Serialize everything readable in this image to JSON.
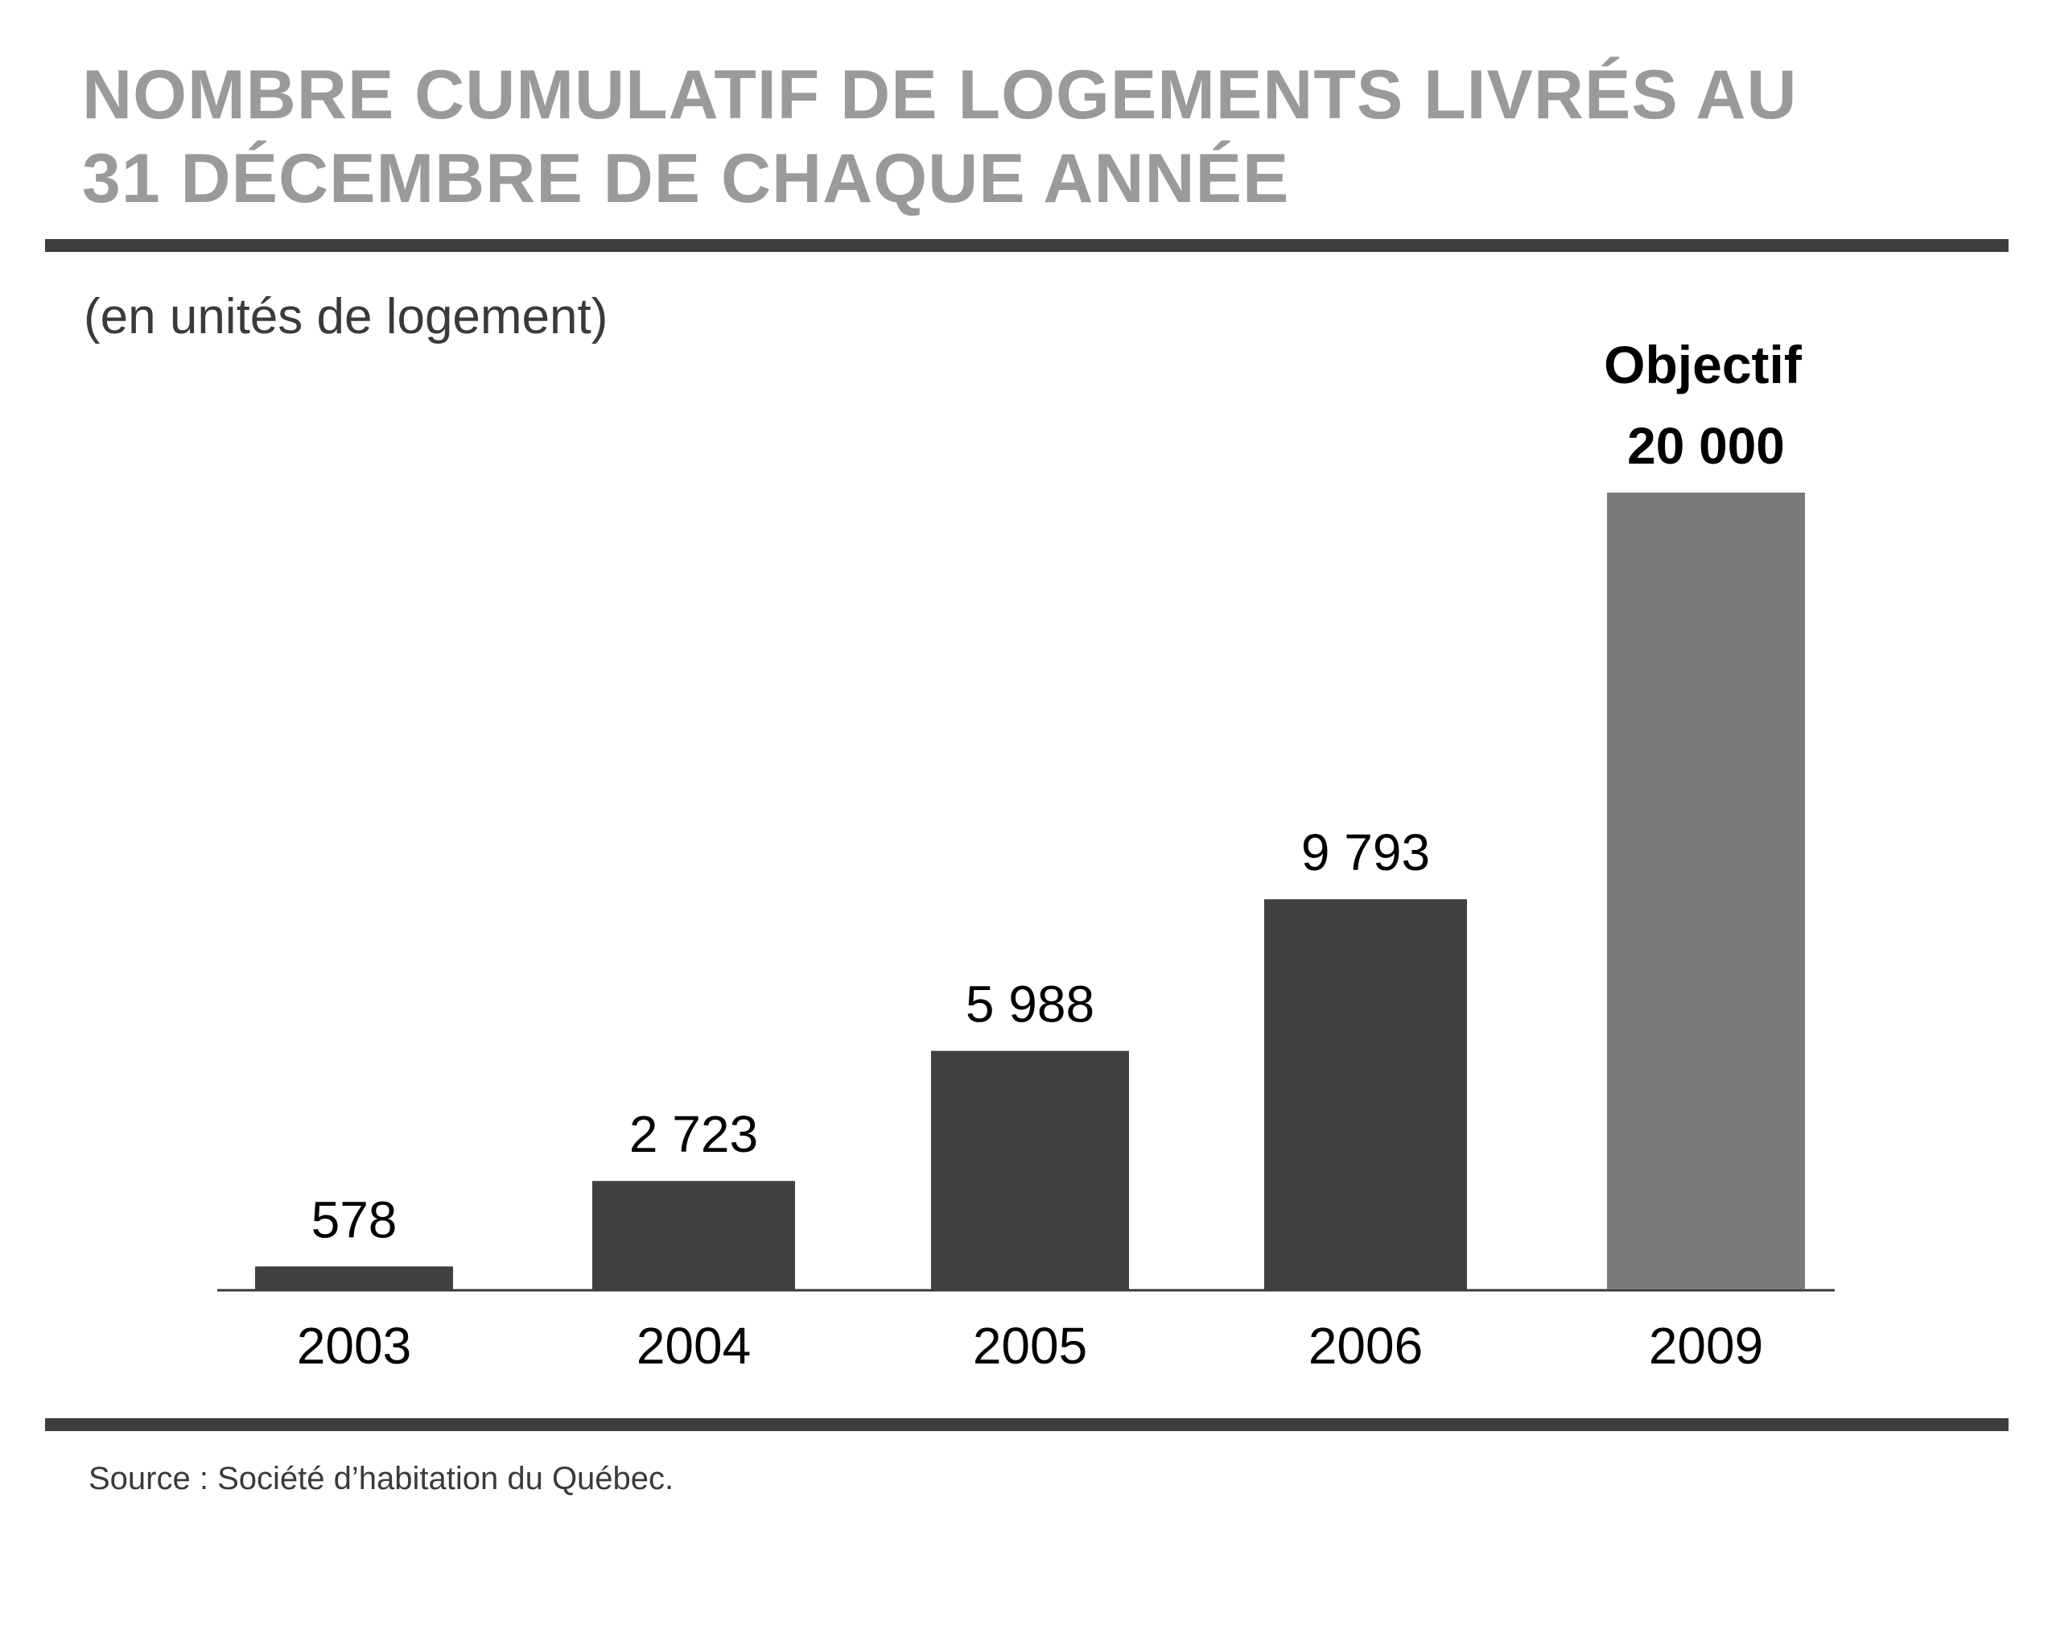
{
  "title_lines": [
    "NOMBRE CUMULATIF DE LOGEMENTS LIVRÉS AU",
    "31 DÉCEMBRE DE CHAQUE ANNÉE"
  ],
  "unit_label": "(en unités de logement)",
  "source": "Source : Société d’habitation du Québec.",
  "colors": {
    "title": "#9a9a9a",
    "actual_bar": "#404040",
    "objective_bar": "#7a7a7a",
    "rule": "#3d3d3d",
    "text": "#000000"
  },
  "chart_data": {
    "type": "bar",
    "title": "NOMBRE CUMULATIF DE LOGEMENTS LIVRÉS AU 31 DÉCEMBRE DE CHAQUE ANNÉE",
    "ylabel": "(en unités de logement)",
    "xlabel": "",
    "categories": [
      "2003",
      "2004",
      "2005",
      "2006",
      "2009"
    ],
    "values": [
      578,
      2723,
      5988,
      9793,
      20000
    ],
    "value_labels": [
      "578",
      "2 723",
      "5 988",
      "9 793",
      "20 000"
    ],
    "objective_label": "Objectif",
    "objective_index": 4,
    "ylim": [
      0,
      20000
    ],
    "grid": false,
    "legend": "none"
  }
}
